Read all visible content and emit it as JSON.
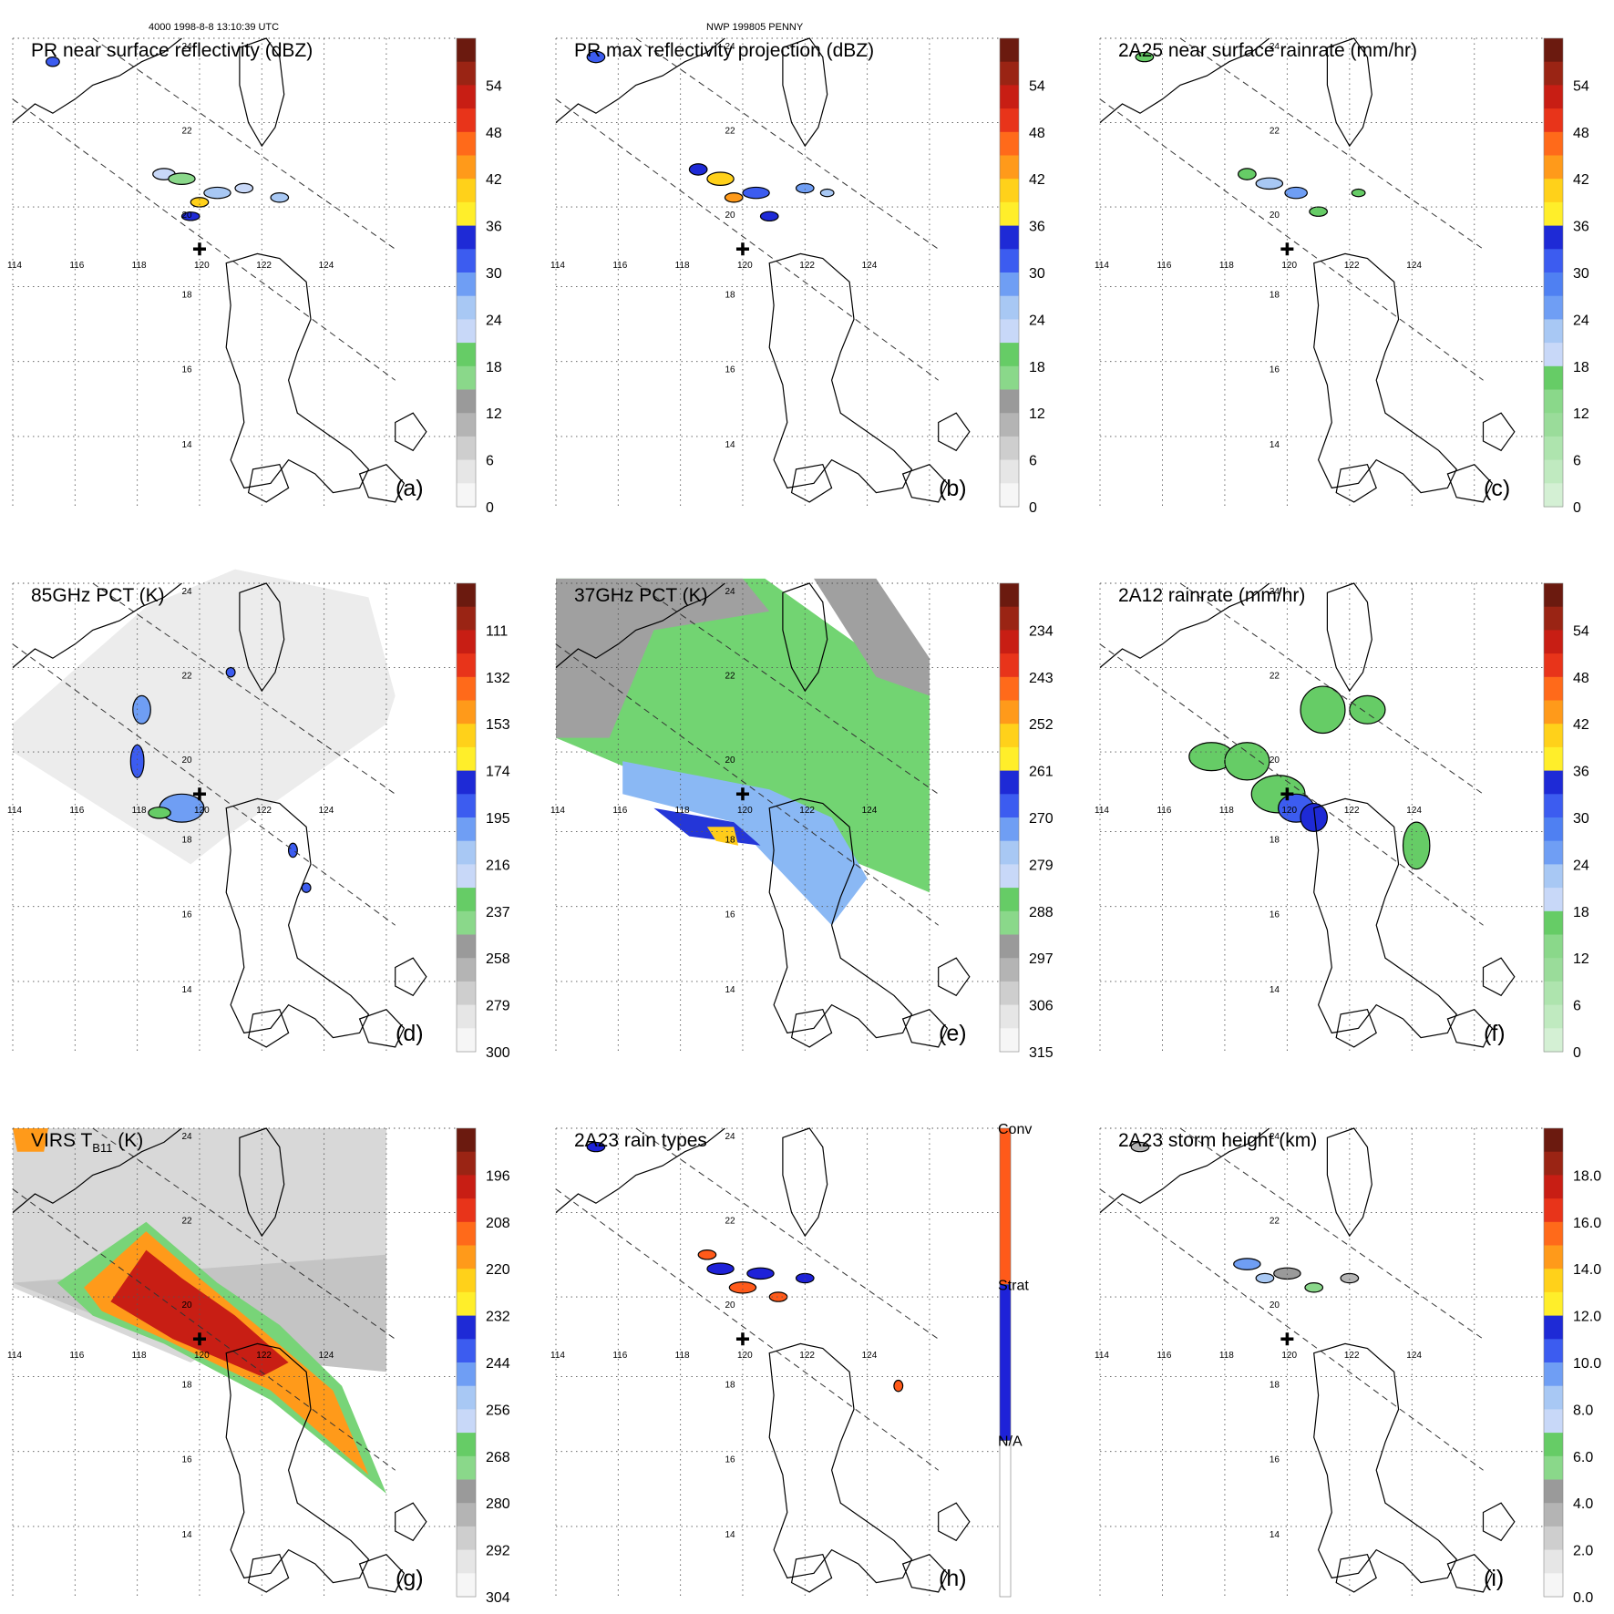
{
  "header": {
    "orbit_time": "4000 1998-8-8 13:10:39 UTC",
    "storm": "NWP 199805 PENNY"
  },
  "coastline_color": "#000000",
  "grid_color": "#555555",
  "lon_labels": [
    "114",
    "116",
    "118",
    "120",
    "122",
    "124"
  ],
  "lat_labels": [
    "14",
    "16",
    "18",
    "20",
    "22",
    "24"
  ],
  "panels": [
    {
      "id": "a",
      "label": "(a)",
      "title": "PR near surface reflectivity (dBZ)",
      "colorbar": {
        "ticks": [
          "54",
          "48",
          "42",
          "36",
          "30",
          "24",
          "18",
          "12",
          "6",
          "0"
        ],
        "colors": [
          "#6b1a0f",
          "#9a2414",
          "#c81e14",
          "#e8341a",
          "#ff6a1a",
          "#ff9a1a",
          "#ffd11a",
          "#ffee2a",
          "#1e2ad6",
          "#3c5cf0",
          "#6f9ef4",
          "#a8c8f4",
          "#c8d8f8",
          "#66cc66",
          "#8ad88a",
          "#9a9a9a",
          "#b4b4b4",
          "#cecece",
          "#e6e6e6",
          "#f6f6f6"
        ]
      }
    },
    {
      "id": "b",
      "label": "(b)",
      "title": "PR max reflectivity projection (dBZ)",
      "colorbar": {
        "ticks": [
          "54",
          "48",
          "42",
          "36",
          "30",
          "24",
          "18",
          "12",
          "6",
          "0"
        ],
        "colors": [
          "#6b1a0f",
          "#9a2414",
          "#c81e14",
          "#e8341a",
          "#ff6a1a",
          "#ff9a1a",
          "#ffd11a",
          "#ffee2a",
          "#1e2ad6",
          "#3c5cf0",
          "#6f9ef4",
          "#a8c8f4",
          "#c8d8f8",
          "#66cc66",
          "#8ad88a",
          "#9a9a9a",
          "#b4b4b4",
          "#cecece",
          "#e6e6e6",
          "#f6f6f6"
        ]
      }
    },
    {
      "id": "c",
      "label": "(c)",
      "title": "2A25 near surface rainrate (mm/hr)",
      "colorbar": {
        "ticks": [
          "54",
          "48",
          "42",
          "36",
          "30",
          "24",
          "18",
          "12",
          "6",
          "0"
        ],
        "colors": [
          "#6b1a0f",
          "#9a2414",
          "#c81e14",
          "#e8341a",
          "#ff6a1a",
          "#ff9a1a",
          "#ffd11a",
          "#ffee2a",
          "#1e2ad6",
          "#3c5cf0",
          "#4f80f2",
          "#6f9ef4",
          "#a8c8f4",
          "#c8d8f8",
          "#66cc66",
          "#8ad88a",
          "#9adc9a",
          "#aee4ae",
          "#c0eac0",
          "#d4f0d4"
        ]
      }
    },
    {
      "id": "d",
      "label": "(d)",
      "title": "85GHz PCT (K)",
      "colorbar": {
        "ticks": [
          "111",
          "132",
          "153",
          "174",
          "195",
          "216",
          "237",
          "258",
          "279",
          "300"
        ],
        "colors": [
          "#6b1a0f",
          "#9a2414",
          "#c81e14",
          "#e8341a",
          "#ff6a1a",
          "#ff9a1a",
          "#ffd11a",
          "#ffee2a",
          "#1e2ad6",
          "#3c5cf0",
          "#6f9ef4",
          "#a8c8f4",
          "#c8d8f8",
          "#66cc66",
          "#8ad88a",
          "#9a9a9a",
          "#b4b4b4",
          "#cecece",
          "#e6e6e6",
          "#f6f6f6"
        ]
      }
    },
    {
      "id": "e",
      "label": "(e)",
      "title": "37GHz PCT (K)",
      "colorbar": {
        "ticks": [
          "234",
          "243",
          "252",
          "261",
          "270",
          "279",
          "288",
          "297",
          "306",
          "315"
        ],
        "colors": [
          "#6b1a0f",
          "#9a2414",
          "#c81e14",
          "#e8341a",
          "#ff6a1a",
          "#ff9a1a",
          "#ffd11a",
          "#ffee2a",
          "#1e2ad6",
          "#3c5cf0",
          "#6f9ef4",
          "#a8c8f4",
          "#c8d8f8",
          "#66cc66",
          "#8ad88a",
          "#9a9a9a",
          "#b4b4b4",
          "#cecece",
          "#e6e6e6",
          "#f6f6f6"
        ]
      }
    },
    {
      "id": "f",
      "label": "(f)",
      "title": "2A12 rainrate (mm/hr)",
      "colorbar": {
        "ticks": [
          "54",
          "48",
          "42",
          "36",
          "30",
          "24",
          "18",
          "12",
          "6",
          "0"
        ],
        "colors": [
          "#6b1a0f",
          "#9a2414",
          "#c81e14",
          "#e8341a",
          "#ff6a1a",
          "#ff9a1a",
          "#ffd11a",
          "#ffee2a",
          "#1e2ad6",
          "#3c5cf0",
          "#4f80f2",
          "#6f9ef4",
          "#a8c8f4",
          "#c8d8f8",
          "#66cc66",
          "#8ad88a",
          "#9adc9a",
          "#aee4ae",
          "#c0eac0",
          "#d4f0d4"
        ]
      }
    },
    {
      "id": "g",
      "label": "(g)",
      "title": "VIRS T",
      "title_sub": "B11",
      "title_unit": " (K)",
      "colorbar": {
        "ticks": [
          "196",
          "208",
          "220",
          "232",
          "244",
          "256",
          "268",
          "280",
          "292",
          "304"
        ],
        "colors": [
          "#6b1a0f",
          "#9a2414",
          "#c81e14",
          "#e8341a",
          "#ff6a1a",
          "#ff9a1a",
          "#ffd11a",
          "#ffee2a",
          "#1e2ad6",
          "#3c5cf0",
          "#6f9ef4",
          "#a8c8f4",
          "#c8d8f8",
          "#66cc66",
          "#8ad88a",
          "#9a9a9a",
          "#b4b4b4",
          "#cecece",
          "#e6e6e6",
          "#f6f6f6"
        ]
      }
    },
    {
      "id": "h",
      "label": "(h)",
      "title": "2A23 rain types",
      "categorical": {
        "labels": [
          "Conv",
          "Strat",
          "N/A"
        ],
        "colors": [
          "#ff5a1a",
          "#1e22d8",
          "#ffffff"
        ]
      }
    },
    {
      "id": "i",
      "label": "(i)",
      "title": "2A23 storm height (km)",
      "colorbar": {
        "ticks": [
          "18.0",
          "16.0",
          "14.0",
          "12.0",
          "10.0",
          "8.0",
          "6.0",
          "4.0",
          "2.0",
          "0.0"
        ],
        "colors": [
          "#6b1a0f",
          "#9a2414",
          "#c81e14",
          "#e8341a",
          "#ff6a1a",
          "#ff9a1a",
          "#ffd11a",
          "#ffee2a",
          "#1e2ad6",
          "#3c5cf0",
          "#6f9ef4",
          "#a8c8f4",
          "#c8d8f8",
          "#66cc66",
          "#8ad88a",
          "#9a9a9a",
          "#b4b4b4",
          "#cecece",
          "#e6e6e6",
          "#f6f6f6"
        ]
      }
    }
  ]
}
